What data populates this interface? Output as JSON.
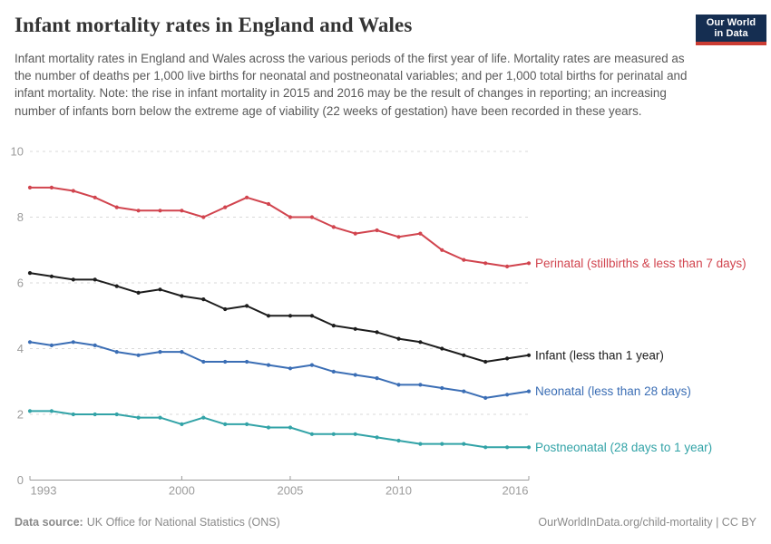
{
  "chart_data": {
    "type": "line",
    "title": "Infant mortality rates in England and Wales",
    "subtitle": "Infant mortality rates in England and Wales across the various periods of the first year of life. Mortality rates are measured as the number of deaths per 1,000 live births for neonatal and postneonatal variables; and per 1,000 total births for perinatal and infant mortality. Note: the rise in infant mortality in 2015 and 2016 may be the result of changes in reporting; an increasing number of infants born below the extreme age of viability (22 weeks of gestation) have been recorded in these years.",
    "xlabel": "",
    "ylabel": "",
    "x": [
      1993,
      1994,
      1995,
      1996,
      1997,
      1998,
      1999,
      2000,
      2001,
      2002,
      2003,
      2004,
      2005,
      2006,
      2007,
      2008,
      2009,
      2010,
      2011,
      2012,
      2013,
      2014,
      2015,
      2016
    ],
    "series": [
      {
        "name": "Perinatal (stillbirths & less than 7 days)",
        "color": "#D1444E",
        "values": [
          8.9,
          8.9,
          8.8,
          8.6,
          8.3,
          8.2,
          8.2,
          8.2,
          8.0,
          8.3,
          8.6,
          8.4,
          8.0,
          8.0,
          7.7,
          7.5,
          7.6,
          7.4,
          7.5,
          7.0,
          6.7,
          6.6,
          6.5,
          6.6
        ]
      },
      {
        "name": "Infant (less than 1 year)",
        "color": "#1D1D1D",
        "values": [
          6.3,
          6.2,
          6.1,
          6.1,
          5.9,
          5.7,
          5.8,
          5.6,
          5.5,
          5.2,
          5.3,
          5.0,
          5.0,
          5.0,
          4.7,
          4.6,
          4.5,
          4.3,
          4.2,
          4.0,
          3.8,
          3.6,
          3.7,
          3.8
        ]
      },
      {
        "name": "Neonatal (less than 28 days)",
        "color": "#3B6EB5",
        "values": [
          4.2,
          4.1,
          4.2,
          4.1,
          3.9,
          3.8,
          3.9,
          3.9,
          3.6,
          3.6,
          3.6,
          3.5,
          3.4,
          3.5,
          3.3,
          3.2,
          3.1,
          2.9,
          2.9,
          2.8,
          2.7,
          2.5,
          2.6,
          2.7
        ]
      },
      {
        "name": "Postneonatal (28 days to 1 year)",
        "color": "#32A3A7",
        "values": [
          2.1,
          2.1,
          2.0,
          2.0,
          2.0,
          1.9,
          1.9,
          1.7,
          1.9,
          1.7,
          1.7,
          1.6,
          1.6,
          1.4,
          1.4,
          1.4,
          1.3,
          1.2,
          1.1,
          1.1,
          1.1,
          1.0,
          1.0,
          1.0
        ]
      }
    ],
    "ylim": [
      0,
      10
    ],
    "yticks": [
      0,
      2,
      4,
      6,
      8,
      10
    ],
    "xticks": [
      1993,
      2000,
      2005,
      2010,
      2016
    ],
    "grid": true,
    "legend_position": "right-of-line-ends",
    "grid_color": "#D9D9D9",
    "axis_color": "#9C9C9C",
    "tick_label_color": "#9C9C9C"
  },
  "logo": {
    "line1": "Our World",
    "line2": "in Data"
  },
  "footer": {
    "source_label": "Data source:",
    "source_text": "UK Office for National Statistics (ONS)",
    "credit": "OurWorldInData.org/child-mortality | CC BY"
  }
}
